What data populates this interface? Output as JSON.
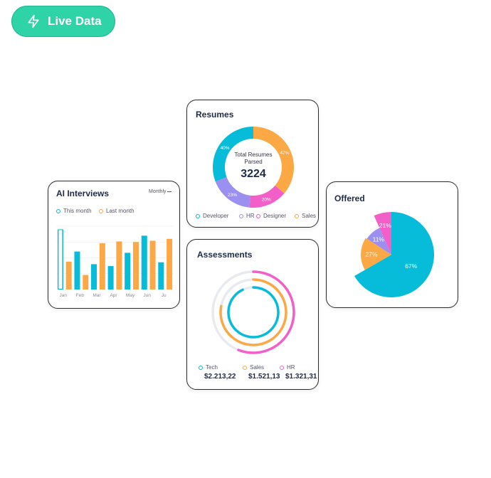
{
  "badge": {
    "label": "Live Data",
    "icon": "lightning-icon"
  },
  "colors": {
    "cyan": "#06bcd8",
    "orange": "#fba845",
    "purple": "#9b8ff0",
    "pink": "#f45ec8",
    "badge": "#2fd3a8"
  },
  "resumes": {
    "title": "Resumes",
    "center_label_line1": "Total Resumes",
    "center_label_line2": "Parsed",
    "center_value": "3224",
    "legend": [
      "Developer",
      "HR",
      "Designer",
      "Sales"
    ]
  },
  "interviews": {
    "title": "AI Interviews",
    "period": "Monthly",
    "legend": [
      "This month",
      "Last month"
    ]
  },
  "offered": {
    "title": "Offered"
  },
  "assessments": {
    "title": "Assessments",
    "items": [
      {
        "label": "Tech",
        "value": "$2.213,22"
      },
      {
        "label": "Sales",
        "value": "$1.521,13"
      },
      {
        "label": "HR",
        "value": "$1.321,31"
      }
    ]
  },
  "chart_data": [
    {
      "type": "pie",
      "title": "Resumes",
      "donut": true,
      "slices": [
        {
          "label": "Developer",
          "value": 40,
          "text": "40%"
        },
        {
          "label": "HR",
          "value": 23,
          "text": "23%"
        },
        {
          "label": "Designer",
          "value": 20,
          "text": "20%"
        },
        {
          "label": "Sales",
          "value": 47,
          "text": "47%"
        }
      ]
    },
    {
      "type": "bar",
      "title": "AI Interviews",
      "categories": [
        "Jan",
        "Feb",
        "Mar",
        "Apr",
        "May",
        "Jun",
        "Ju"
      ],
      "series": [
        {
          "name": "This month",
          "values": [
            95,
            60,
            40,
            37,
            58,
            85,
            43
          ]
        },
        {
          "name": "Last month",
          "values": [
            44,
            23,
            73,
            76,
            75,
            77,
            80
          ]
        },
        {
          "name": "This month",
          "values": [
            null,
            null,
            null,
            null,
            95,
            null,
            null
          ]
        }
      ],
      "bars": [
        {
          "series": "This month",
          "value": 95
        },
        {
          "series": "Last month",
          "value": 44
        },
        {
          "series": "This month",
          "value": 60
        },
        {
          "series": "Last month",
          "value": 23
        },
        {
          "series": "This month",
          "value": 40
        },
        {
          "series": "Last month",
          "value": 73
        },
        {
          "series": "This month",
          "value": 37
        },
        {
          "series": "Last month",
          "value": 76
        },
        {
          "series": "This month",
          "value": 58
        },
        {
          "series": "Last month",
          "value": 75
        },
        {
          "series": "This month",
          "value": 85
        },
        {
          "series": "Last month",
          "value": 77
        },
        {
          "series": "This month",
          "value": 43
        },
        {
          "series": "Last month",
          "value": 80
        }
      ],
      "ylim": [
        0,
        100
      ],
      "grid": true
    },
    {
      "type": "pie",
      "title": "Offered",
      "slices": [
        {
          "label": "Cyan",
          "value": 67,
          "text": "67%"
        },
        {
          "label": "Orange",
          "value": 27,
          "text": "27%"
        },
        {
          "label": "Purple",
          "value": 11,
          "text": "11%"
        },
        {
          "label": "Pink",
          "value": 21,
          "text": "21%"
        }
      ]
    },
    {
      "type": "radial",
      "title": "Assessments",
      "rings": [
        {
          "label": "HR",
          "fraction": 0.56
        },
        {
          "label": "Sales",
          "fraction": 0.78
        },
        {
          "label": "Tech",
          "fraction": 0.93
        }
      ]
    }
  ]
}
